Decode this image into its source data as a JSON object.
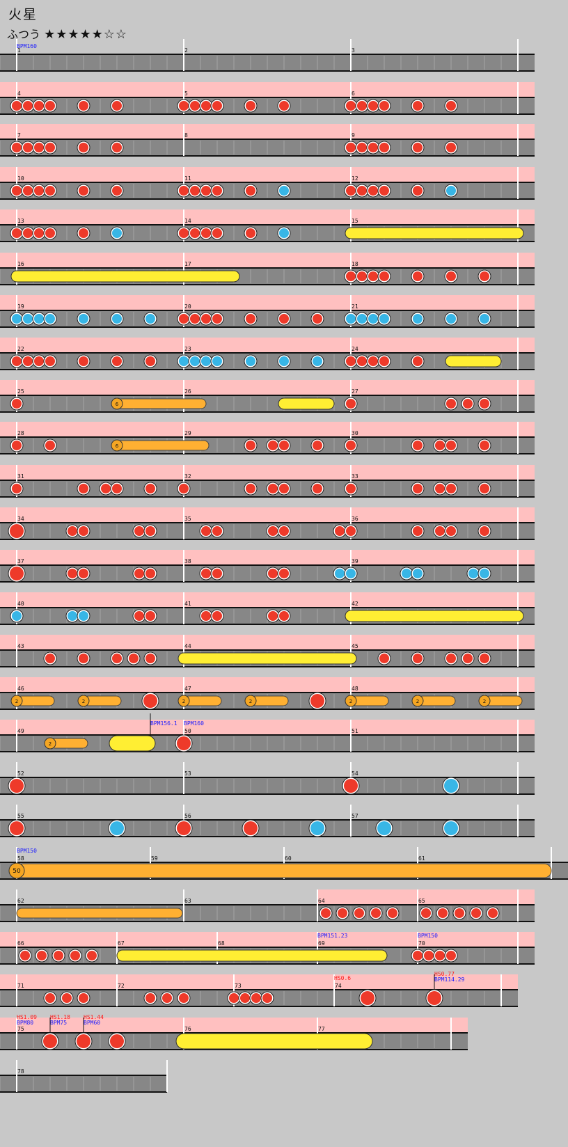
{
  "song": {
    "title": "火星",
    "difficulty": "ふつう",
    "stars": "★★★★★☆☆",
    "star_level": 5,
    "star_max": 7
  },
  "colors": {
    "don": "#ee3a2a",
    "ka": "#38b6e6",
    "roll": "#ffee33",
    "drumroll_big": "#ffb032",
    "gogo_band": "#ffc0c0",
    "lane": "#878787",
    "bpm_text": "#1a1aff",
    "hs_text": "#ff1a1a"
  },
  "chart_data": {
    "type": "taiko-score",
    "measure_labels": [
      "1",
      "2",
      "3",
      "4",
      "5",
      "6",
      "7",
      "8",
      "9",
      "10",
      "11",
      "12",
      "13",
      "14",
      "15",
      "16",
      "17",
      "18",
      "19",
      "20",
      "21",
      "22",
      "23",
      "24",
      "25",
      "26",
      "27",
      "28",
      "29",
      "30",
      "31",
      "32",
      "33",
      "34",
      "35",
      "36",
      "37",
      "38",
      "39",
      "40",
      "41",
      "42",
      "43",
      "44",
      "45",
      "46",
      "47",
      "48",
      "49",
      "50",
      "51",
      "52",
      "53",
      "54",
      "55",
      "56",
      "57",
      "58",
      "59",
      "60",
      "61",
      "62",
      "63",
      "64",
      "65",
      "66",
      "67",
      "68",
      "69",
      "70",
      "71",
      "72",
      "73",
      "74",
      "75",
      "76",
      "77",
      "78"
    ],
    "annotations": {
      "bpm_start": "BPM160",
      "bpm_m49": "BPM156.1",
      "bpm_m50": "BPM160",
      "bpm_m58": "BPM150",
      "bpm_m69": "BPM151.23",
      "bpm_m70": "BPM150",
      "hs_m74": "HS0.6",
      "hs_m74b": "HS0.77",
      "bpm_m74b": "BPM114.29",
      "hs_m75a": "HS1.09",
      "bpm_m75a": "BPM80",
      "hs_m75b": "HS1.18",
      "bpm_m75b": "BPM75",
      "hs_m75c": "HS1.44",
      "bpm_m75c": "BPM60"
    },
    "balloon_counts": [
      "6",
      "6",
      "2",
      "2",
      "2",
      "2",
      "2",
      "2",
      "2",
      "2",
      "50"
    ]
  }
}
